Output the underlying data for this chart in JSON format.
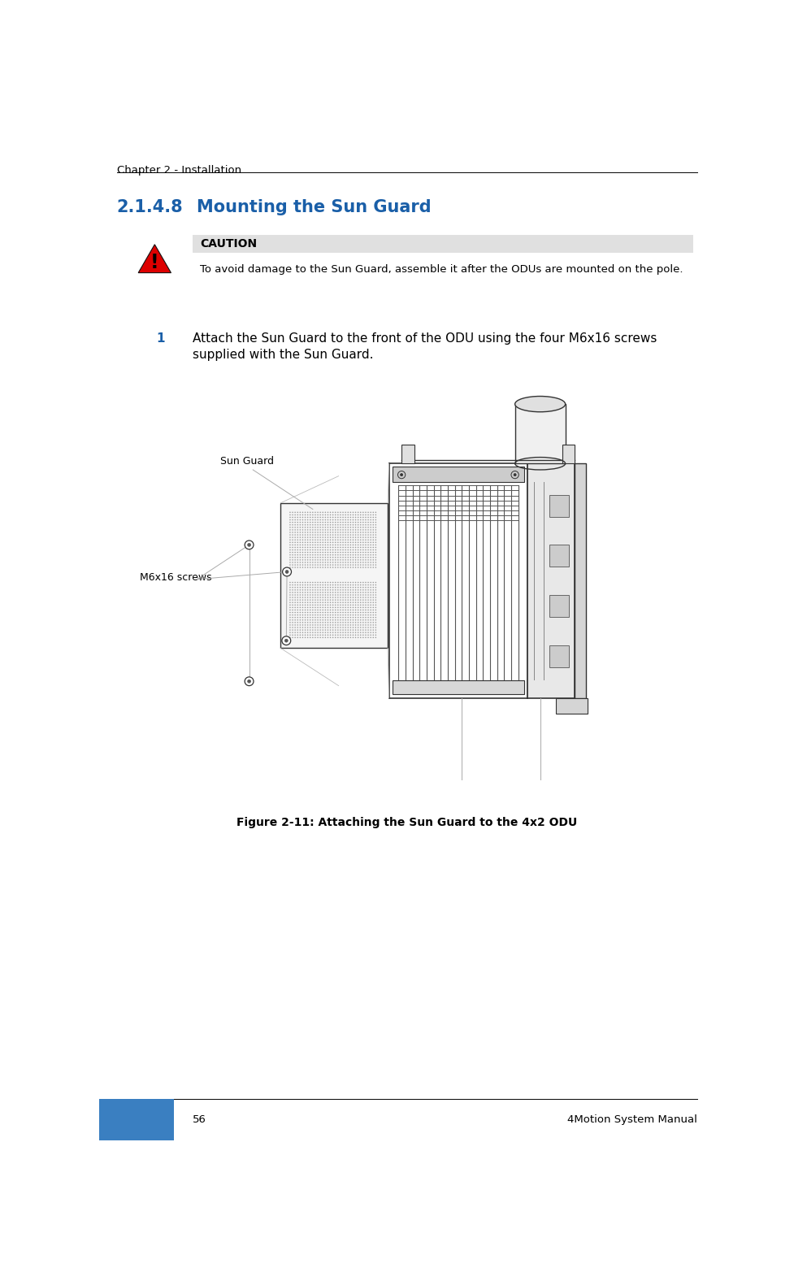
{
  "page_bg": "#ffffff",
  "header_text": "Chapter 2 - Installation",
  "header_font_size": 9.5,
  "header_color": "#000000",
  "section_number": "2.1.4.8",
  "section_title": "Mounting the Sun Guard",
  "section_font_size": 15,
  "section_color": "#1a5fa8",
  "caution_header": "CAUTION",
  "caution_header_bg": "#e0e0e0",
  "caution_header_font_size": 10,
  "caution_text": "To avoid damage to the Sun Guard, assemble it after the ODUs are mounted on the pole.",
  "caution_text_font_size": 9.5,
  "step_number": "1",
  "step_text_line1": "Attach the Sun Guard to the front of the ODU using the four M6x16 screws",
  "step_text_line2": "supplied with the Sun Guard.",
  "step_font_size": 11,
  "step_color": "#1a5fa8",
  "label_sun_guard": "Sun Guard",
  "label_m6x16": "M6x16 screws",
  "label_font_size": 9,
  "figure_caption": "Figure 2-11: Attaching the Sun Guard to the 4x2 ODU",
  "figure_caption_font_size": 10,
  "footer_page": "56",
  "footer_right": "4Motion System Manual",
  "footer_font_size": 9.5,
  "footer_bar_color": "#3a7fc1",
  "line_color": "#333333",
  "leader_color": "#aaaaaa"
}
